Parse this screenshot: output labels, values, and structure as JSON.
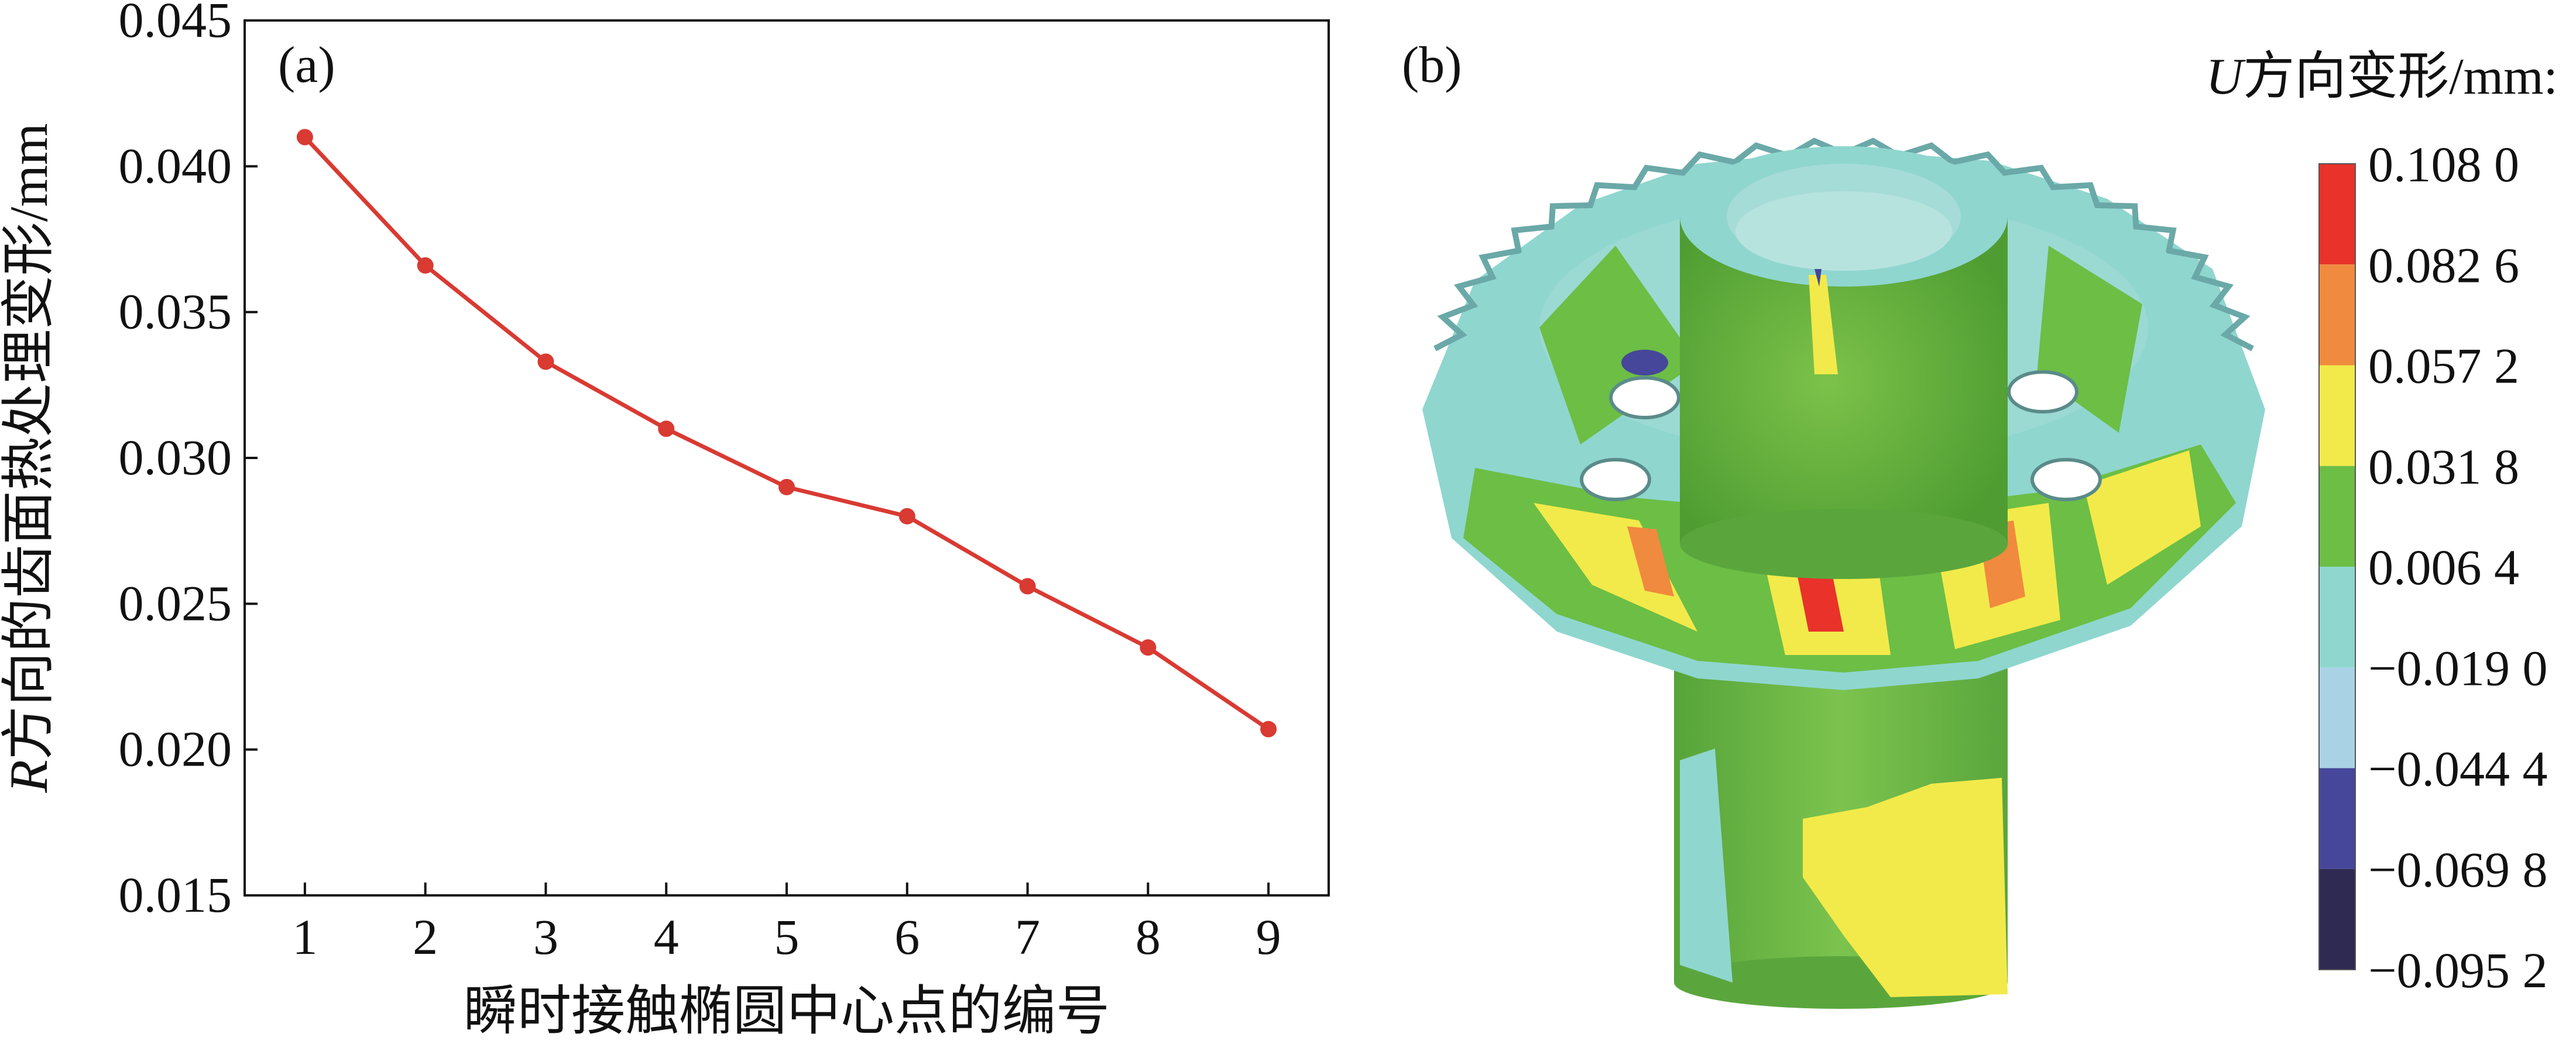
{
  "chart_data": [
    {
      "panel_label": "(a)",
      "type": "line",
      "title": "",
      "xlabel": "瞬时接触椭圆中心点的编号",
      "ylabel": "R方向的齿面热处理变形/mm",
      "ylabel_italic_part": "R",
      "ylabel_rest": "方向的齿面热处理变形/mm",
      "xlim": [
        0.5,
        9.5
      ],
      "ylim": [
        0.015,
        0.045
      ],
      "x_ticks": [
        1,
        2,
        3,
        4,
        5,
        6,
        7,
        8,
        9
      ],
      "x_tick_labels": [
        "1",
        "2",
        "3",
        "4",
        "5",
        "6",
        "7",
        "8",
        "9"
      ],
      "y_ticks": [
        0.015,
        0.02,
        0.025,
        0.03,
        0.035,
        0.04,
        0.045
      ],
      "y_tick_labels": [
        "0.015",
        "0.020",
        "0.025",
        "0.030",
        "0.035",
        "0.040",
        "0.045"
      ],
      "grid": false,
      "series": [
        {
          "color": "#d93a32",
          "x": [
            1,
            2,
            3,
            4,
            5,
            6,
            7,
            8,
            9
          ],
          "values": [
            0.041,
            0.0366,
            0.0333,
            0.031,
            0.029,
            0.028,
            0.0256,
            0.0235,
            0.0207
          ]
        }
      ]
    },
    {
      "panel_label": "(b)",
      "type": "heatmap",
      "legend_title": "U方向变形/mm:",
      "legend_title_italic_part": "U",
      "legend_title_rest": "方向变形/mm:",
      "legend_placement": "right",
      "legend_values": [
        "0.108 0",
        "0.082 6",
        "0.057 2",
        "0.031 8",
        "0.006 4",
        "−0.019 0",
        "−0.044 4",
        "−0.069 8",
        "−0.095 2"
      ],
      "legend_colors": [
        "#e8322a",
        "#f08a3e",
        "#f2ea4a",
        "#6cbe45",
        "#8fd6cf",
        "#a9d3e4",
        "#46469a",
        "#2e2a52"
      ],
      "image": "bevel-gear-deformation-contour"
    }
  ]
}
